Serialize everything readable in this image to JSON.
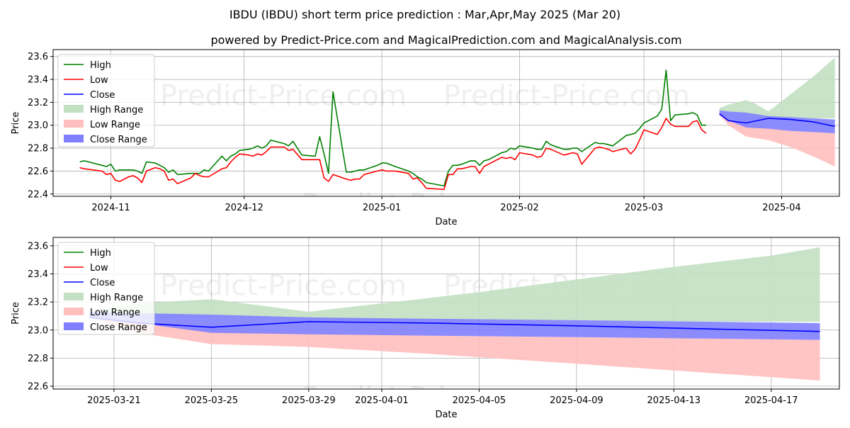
{
  "title": "IBDU (IBDU) short term price prediction : Mar,Apr,May 2025 (Mar 20)",
  "subtitle": "powered by Predict-Price.com and MagicalPrediction.com and MagicalAnalysis.com",
  "watermark": "Predict-Price.com",
  "colors": {
    "high": "#008000",
    "low": "#ff0000",
    "close": "#0000ff",
    "high_range": "#c2e0c2",
    "low_range": "#ffbfbf",
    "close_range": "#7f7fff"
  },
  "chart_data": [
    {
      "type": "line",
      "name": "historical-and-forecast",
      "xlabel": "Date",
      "ylabel": "Price",
      "ylim": [
        22.38,
        23.66
      ],
      "xlim": [
        -6,
        171
      ],
      "x_origin": "2024-10-25",
      "yticks": [
        22.4,
        22.6,
        22.8,
        23.0,
        23.2,
        23.4,
        23.6
      ],
      "ytick_labels": [
        "22.4",
        "22.6",
        "22.8",
        "23.0",
        "23.2",
        "23.4",
        "23.6"
      ],
      "xticks": [
        7,
        37,
        68,
        99,
        127,
        158
      ],
      "xtick_labels": [
        "2024-11",
        "2024-12",
        "2025-01",
        "2025-02",
        "2025-03",
        "2025-04"
      ],
      "legend": [
        "High",
        "Low",
        "Close",
        "High Range",
        "Low Range",
        "Close Range"
      ],
      "legend_position": "top-left",
      "series": [
        {
          "name": "High",
          "x": [
            0,
            1,
            3,
            5,
            6,
            7,
            8,
            9,
            11,
            12,
            13,
            14,
            15,
            17,
            18,
            19,
            20,
            21,
            22,
            25,
            26,
            27,
            28,
            29,
            32,
            33,
            34,
            35,
            36,
            38,
            39,
            40,
            41,
            42,
            43,
            46,
            47,
            48,
            50,
            53,
            54,
            55,
            56,
            57,
            60,
            61,
            62,
            63,
            64,
            67,
            68,
            69,
            71,
            74,
            75,
            76,
            77,
            78,
            82,
            83,
            84,
            85,
            86,
            88,
            89,
            90,
            91,
            92,
            95,
            96,
            97,
            98,
            99,
            102,
            103,
            104,
            105,
            106,
            109,
            110,
            111,
            112,
            113,
            116,
            117,
            118,
            119,
            120,
            123,
            124,
            125,
            126,
            127,
            130,
            131,
            132,
            133,
            134,
            137,
            138,
            139,
            140,
            141
          ],
          "y": [
            22.68,
            22.69,
            22.67,
            22.65,
            22.64,
            22.66,
            22.6,
            22.61,
            22.61,
            22.61,
            22.6,
            22.58,
            22.68,
            22.67,
            22.65,
            22.63,
            22.59,
            22.61,
            22.57,
            22.58,
            22.58,
            22.58,
            22.61,
            22.6,
            22.73,
            22.69,
            22.73,
            22.75,
            22.78,
            22.79,
            22.8,
            22.82,
            22.8,
            22.82,
            22.87,
            22.84,
            22.82,
            22.86,
            22.74,
            22.73,
            22.9,
            22.75,
            22.58,
            23.29,
            22.59,
            22.59,
            22.6,
            22.61,
            22.61,
            22.65,
            22.67,
            22.67,
            22.64,
            22.6,
            22.58,
            22.55,
            22.53,
            22.5,
            22.47,
            22.6,
            22.65,
            22.65,
            22.66,
            22.69,
            22.69,
            22.65,
            22.69,
            22.7,
            22.76,
            22.77,
            22.8,
            22.79,
            22.82,
            22.8,
            22.79,
            22.79,
            22.86,
            22.83,
            22.79,
            22.79,
            22.8,
            22.8,
            22.77,
            22.85,
            22.84,
            22.84,
            22.83,
            22.82,
            22.91,
            22.92,
            22.93,
            22.97,
            23.02,
            23.08,
            23.14,
            23.48,
            23.04,
            23.09,
            23.1,
            23.11,
            23.09,
            23.0,
            23.0
          ],
          "color": "#008000"
        },
        {
          "name": "Low",
          "x": [
            0,
            1,
            3,
            5,
            6,
            7,
            8,
            9,
            11,
            12,
            13,
            14,
            15,
            17,
            18,
            19,
            20,
            21,
            22,
            25,
            26,
            27,
            28,
            29,
            32,
            33,
            34,
            35,
            36,
            38,
            39,
            40,
            41,
            42,
            43,
            46,
            47,
            48,
            50,
            53,
            54,
            55,
            56,
            57,
            60,
            61,
            62,
            63,
            64,
            67,
            68,
            69,
            71,
            74,
            75,
            76,
            77,
            78,
            82,
            83,
            84,
            85,
            86,
            88,
            89,
            90,
            91,
            92,
            95,
            96,
            97,
            98,
            99,
            102,
            103,
            104,
            105,
            106,
            109,
            110,
            111,
            112,
            113,
            116,
            117,
            118,
            119,
            120,
            123,
            124,
            125,
            126,
            127,
            130,
            131,
            132,
            133,
            134,
            137,
            138,
            139,
            140,
            141
          ],
          "y": [
            22.63,
            22.62,
            22.61,
            22.6,
            22.57,
            22.58,
            22.52,
            22.51,
            22.55,
            22.56,
            22.54,
            22.5,
            22.6,
            22.63,
            22.62,
            22.6,
            22.52,
            22.53,
            22.49,
            22.54,
            22.58,
            22.56,
            22.55,
            22.55,
            22.62,
            22.63,
            22.68,
            22.72,
            22.75,
            22.74,
            22.73,
            22.75,
            22.74,
            22.77,
            22.81,
            22.81,
            22.78,
            22.79,
            22.7,
            22.7,
            22.7,
            22.54,
            22.51,
            22.57,
            22.53,
            22.52,
            22.53,
            22.53,
            22.57,
            22.6,
            22.61,
            22.6,
            22.6,
            22.58,
            22.53,
            22.54,
            22.5,
            22.45,
            22.44,
            22.57,
            22.57,
            22.62,
            22.62,
            22.64,
            22.64,
            22.58,
            22.64,
            22.66,
            22.72,
            22.71,
            22.72,
            22.7,
            22.76,
            22.74,
            22.72,
            22.73,
            22.8,
            22.79,
            22.74,
            22.75,
            22.76,
            22.75,
            22.66,
            22.8,
            22.81,
            22.8,
            22.79,
            22.77,
            22.8,
            22.75,
            22.79,
            22.87,
            22.96,
            22.92,
            22.98,
            23.06,
            23.01,
            22.99,
            22.99,
            23.03,
            23.04,
            22.96,
            22.93
          ],
          "color": "#ff0000"
        },
        {
          "name": "Close",
          "x": [
            144,
            146,
            150,
            155,
            160,
            165,
            170
          ],
          "y": [
            23.1,
            23.04,
            23.02,
            23.06,
            23.05,
            23.03,
            22.99
          ],
          "color": "#0000ff"
        }
      ],
      "ranges": [
        {
          "name": "High Range",
          "x": [
            144,
            146,
            150,
            152,
            155,
            160,
            165,
            170
          ],
          "lower": [
            23.09,
            23.06,
            23.04,
            23.05,
            23.06,
            23.06,
            23.06,
            23.06
          ],
          "upper": [
            23.15,
            23.18,
            23.22,
            23.19,
            23.12,
            23.27,
            23.42,
            23.59
          ],
          "color": "#c2e0c2"
        },
        {
          "name": "Low Range",
          "x": [
            144,
            146,
            150,
            155,
            160,
            165,
            170
          ],
          "lower": [
            23.09,
            23.0,
            22.9,
            22.87,
            22.81,
            22.73,
            22.64
          ],
          "upper": [
            23.12,
            23.06,
            23.0,
            22.98,
            22.95,
            22.94,
            22.93
          ],
          "color": "#ffbfbf"
        },
        {
          "name": "Close Range",
          "x": [
            144,
            146,
            150,
            155,
            160,
            165,
            170
          ],
          "lower": [
            23.09,
            23.04,
            22.98,
            22.97,
            22.95,
            22.94,
            22.93
          ],
          "upper": [
            23.13,
            23.12,
            23.11,
            23.08,
            23.07,
            23.06,
            23.05
          ],
          "color": "#7f7fff"
        }
      ]
    },
    {
      "type": "line",
      "name": "forecast-zoom",
      "xlabel": "Date",
      "ylabel": "Price",
      "ylim": [
        22.58,
        23.66
      ],
      "xlim": [
        -1.5,
        30.8
      ],
      "x_origin": "2025-03-20",
      "yticks": [
        22.6,
        22.8,
        23.0,
        23.2,
        23.4,
        23.6
      ],
      "ytick_labels": [
        "22.6",
        "22.8",
        "23.0",
        "23.2",
        "23.4",
        "23.6"
      ],
      "xticks": [
        1,
        5,
        9,
        12,
        16,
        20,
        24,
        28
      ],
      "xtick_labels": [
        "2025-03-21",
        "2025-03-25",
        "2025-03-29",
        "2025-04-01",
        "2025-04-05",
        "2025-04-09",
        "2025-04-13",
        "2025-04-17"
      ],
      "legend": [
        "High",
        "Low",
        "Close",
        "High Range",
        "Low Range",
        "Close Range"
      ],
      "legend_position": "top-left",
      "series": [
        {
          "name": "Close",
          "x": [
            0,
            2,
            5,
            9,
            14,
            20,
            25,
            30
          ],
          "y": [
            23.09,
            23.05,
            23.02,
            23.06,
            23.05,
            23.03,
            23.01,
            22.99
          ],
          "color": "#0000ff"
        }
      ],
      "ranges": [
        {
          "name": "High Range",
          "x": [
            0,
            2,
            5,
            9,
            12,
            16,
            20,
            24,
            28,
            30
          ],
          "lower": [
            23.11,
            23.08,
            23.09,
            23.08,
            23.07,
            23.07,
            23.07,
            23.06,
            23.06,
            23.06
          ],
          "upper": [
            23.13,
            23.19,
            23.22,
            23.13,
            23.19,
            23.27,
            23.36,
            23.45,
            23.53,
            23.59
          ],
          "color": "#c2e0c2"
        },
        {
          "name": "Low Range",
          "x": [
            0,
            2,
            5,
            9,
            14,
            20,
            25,
            30
          ],
          "lower": [
            23.09,
            22.98,
            22.9,
            22.88,
            22.83,
            22.76,
            22.7,
            22.64
          ],
          "upper": [
            23.12,
            23.06,
            23.0,
            22.98,
            22.96,
            22.95,
            22.94,
            22.93
          ],
          "color": "#ffbfbf"
        },
        {
          "name": "Close Range",
          "x": [
            0,
            2,
            5,
            9,
            14,
            20,
            25,
            30
          ],
          "lower": [
            23.09,
            23.05,
            22.98,
            22.97,
            22.96,
            22.95,
            22.94,
            22.93
          ],
          "upper": [
            23.13,
            23.12,
            23.11,
            23.09,
            23.08,
            23.07,
            23.06,
            23.05
          ],
          "color": "#7f7fff"
        }
      ]
    }
  ]
}
